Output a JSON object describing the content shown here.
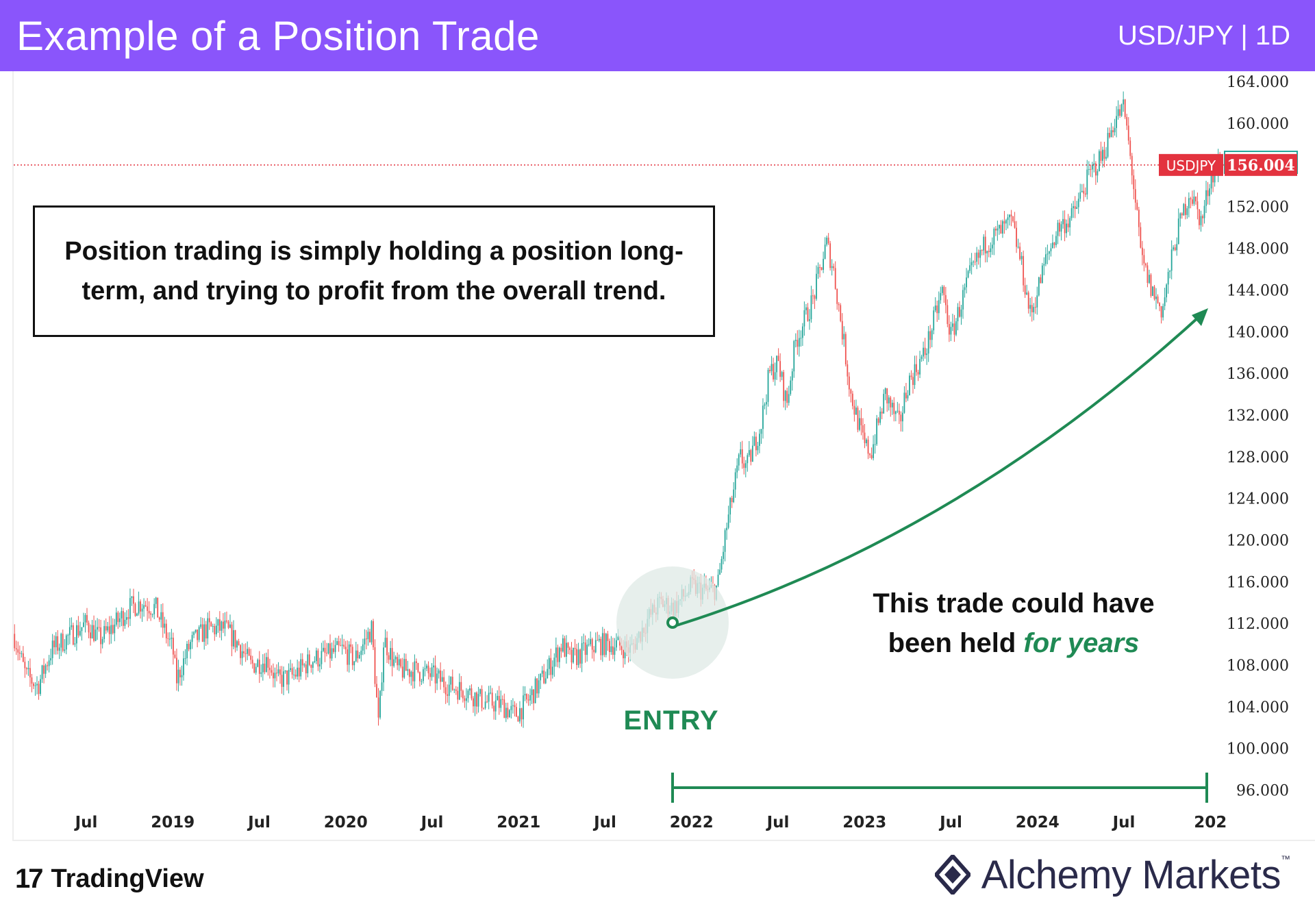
{
  "header": {
    "title": "Example of a Position Trade",
    "pair": "USD/JPY | 1D"
  },
  "callout": {
    "text": "Position trading is simply holding a position long-term, and trying to profit from the overall trend."
  },
  "annotations": {
    "held_prefix": "This trade could have been held ",
    "held_accent": "for years",
    "entry": "ENTRY"
  },
  "footer": {
    "tv_logo": "17",
    "tv_name": "TradingView",
    "am_name": "Alchemy Markets",
    "am_tm": "™"
  },
  "colors": {
    "header_bg": "#8a55fb",
    "up": "#26a69a",
    "down": "#ef5350",
    "accent": "#1f8a54",
    "price_tag": "#e3333f"
  },
  "chart_data": {
    "type": "candlestick",
    "symbol": "USDJPY",
    "timeframe": "1D",
    "last_price_label": "156.004",
    "last_close_label": "156.259",
    "last_price": 156.004,
    "last_close": 156.259,
    "ylim": [
      94,
      165
    ],
    "y_ticks": [
      "164.000",
      "160.000",
      "152.000",
      "148.000",
      "144.000",
      "140.000",
      "136.000",
      "132.000",
      "128.000",
      "124.000",
      "120.000",
      "116.000",
      "112.000",
      "108.000",
      "104.000",
      "100.000",
      "96.000"
    ],
    "x_ticks": [
      {
        "label": "Jul",
        "t": 2018.5
      },
      {
        "label": "2019",
        "t": 2019.0
      },
      {
        "label": "Jul",
        "t": 2019.5
      },
      {
        "label": "2020",
        "t": 2020.0
      },
      {
        "label": "Jul",
        "t": 2020.5
      },
      {
        "label": "2021",
        "t": 2021.0
      },
      {
        "label": "Jul",
        "t": 2021.5
      },
      {
        "label": "2022",
        "t": 2022.0
      },
      {
        "label": "Jul",
        "t": 2022.5
      },
      {
        "label": "2023",
        "t": 2023.0
      },
      {
        "label": "Jul",
        "t": 2023.5
      },
      {
        "label": "2024",
        "t": 2024.0
      },
      {
        "label": "Jul",
        "t": 2024.5
      },
      {
        "label": "202",
        "t": 2025.0
      }
    ],
    "xlim": [
      2018.08,
      2025.09
    ],
    "price_path": [
      [
        2018.08,
        111
      ],
      [
        2018.15,
        107
      ],
      [
        2018.22,
        106
      ],
      [
        2018.3,
        109.5
      ],
      [
        2018.42,
        111
      ],
      [
        2018.5,
        112
      ],
      [
        2018.58,
        110.5
      ],
      [
        2018.67,
        112
      ],
      [
        2018.75,
        113.5
      ],
      [
        2018.82,
        114
      ],
      [
        2018.9,
        113.5
      ],
      [
        2018.96,
        111
      ],
      [
        2019.0,
        109.5
      ],
      [
        2019.02,
        106.5
      ],
      [
        2019.1,
        110
      ],
      [
        2019.2,
        111.5
      ],
      [
        2019.3,
        111.5
      ],
      [
        2019.38,
        110
      ],
      [
        2019.45,
        108
      ],
      [
        2019.55,
        108.5
      ],
      [
        2019.6,
        106.5
      ],
      [
        2019.7,
        107
      ],
      [
        2019.8,
        108.5
      ],
      [
        2019.9,
        109
      ],
      [
        2019.98,
        109.5
      ],
      [
        2020.05,
        108.5
      ],
      [
        2020.15,
        111.5
      ],
      [
        2020.19,
        102
      ],
      [
        2020.22,
        110.5
      ],
      [
        2020.3,
        107.5
      ],
      [
        2020.4,
        107.5
      ],
      [
        2020.5,
        107
      ],
      [
        2020.6,
        106
      ],
      [
        2020.7,
        105.5
      ],
      [
        2020.8,
        104.5
      ],
      [
        2020.9,
        104.2
      ],
      [
        2020.98,
        103.2
      ],
      [
        2021.05,
        104.5
      ],
      [
        2021.15,
        107
      ],
      [
        2021.25,
        110
      ],
      [
        2021.3,
        108.5
      ],
      [
        2021.45,
        110
      ],
      [
        2021.55,
        110
      ],
      [
        2021.65,
        109.5
      ],
      [
        2021.75,
        112.5
      ],
      [
        2021.82,
        114
      ],
      [
        2021.9,
        113.5
      ],
      [
        2022.0,
        115.5
      ],
      [
        2022.1,
        115
      ],
      [
        2022.15,
        115.5
      ],
      [
        2022.2,
        121
      ],
      [
        2022.28,
        128
      ],
      [
        2022.32,
        127
      ],
      [
        2022.4,
        131
      ],
      [
        2022.45,
        136
      ],
      [
        2022.5,
        137
      ],
      [
        2022.55,
        133
      ],
      [
        2022.6,
        139
      ],
      [
        2022.7,
        143
      ],
      [
        2022.78,
        148.5
      ],
      [
        2022.82,
        146
      ],
      [
        2022.88,
        139
      ],
      [
        2022.92,
        134
      ],
      [
        2023.0,
        129
      ],
      [
        2023.04,
        128.5
      ],
      [
        2023.12,
        134
      ],
      [
        2023.2,
        131
      ],
      [
        2023.25,
        135
      ],
      [
        2023.35,
        138
      ],
      [
        2023.45,
        144
      ],
      [
        2023.5,
        139.5
      ],
      [
        2023.6,
        145
      ],
      [
        2023.7,
        148.5
      ],
      [
        2023.78,
        149.5
      ],
      [
        2023.85,
        150.5
      ],
      [
        2023.9,
        147
      ],
      [
        2023.96,
        141.5
      ],
      [
        2024.05,
        147
      ],
      [
        2024.12,
        150
      ],
      [
        2024.2,
        151
      ],
      [
        2024.3,
        155
      ],
      [
        2024.38,
        157
      ],
      [
        2024.45,
        160.5
      ],
      [
        2024.5,
        161.5
      ],
      [
        2024.55,
        155
      ],
      [
        2024.6,
        147
      ],
      [
        2024.66,
        144
      ],
      [
        2024.72,
        142
      ],
      [
        2024.8,
        149
      ],
      [
        2024.88,
        153.5
      ],
      [
        2024.95,
        150.5
      ],
      [
        2025.0,
        155
      ],
      [
        2025.06,
        156.3
      ]
    ]
  }
}
